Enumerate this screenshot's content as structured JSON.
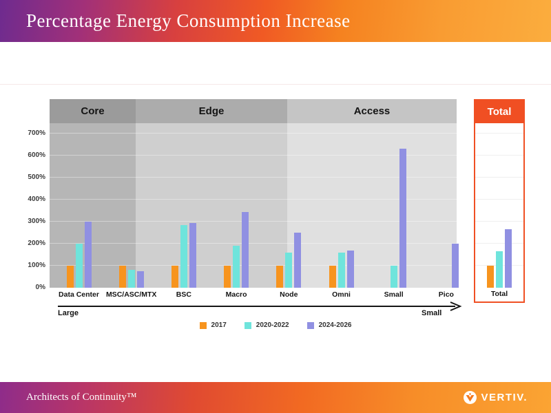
{
  "title": "Percentage Energy Consumption Increase",
  "footer": {
    "tagline": "Architects of Continuity™",
    "brand": "VERTIV."
  },
  "colors": {
    "series": [
      "#F7941E",
      "#6FE4DC",
      "#9090E2"
    ],
    "total_accent": "#F04F23",
    "core_header": "#9B9B9B",
    "edge_header": "#ACACAC",
    "access_header": "#C5C5C5",
    "core_bg": "#B6B6B6",
    "edge_bg": "#CFCFCF",
    "access_bg": "#E0E0E0"
  },
  "chart_data": {
    "type": "bar",
    "title": "Percentage Energy Consumption Increase",
    "sections": [
      {
        "label": "Core",
        "categories": [
          "Data Center",
          "MSC/ASC/MTX"
        ]
      },
      {
        "label": "Edge",
        "categories": [
          "BSC",
          "Macro",
          "Node"
        ]
      },
      {
        "label": "Access",
        "categories": [
          "Omni",
          "Small",
          "Pico"
        ]
      },
      {
        "label": "Total",
        "categories": [
          "Total"
        ]
      }
    ],
    "categories": [
      "Data Center",
      "MSC/ASC/MTX",
      "BSC",
      "Macro",
      "Node",
      "Omni",
      "Small",
      "Pico",
      "Total"
    ],
    "series": [
      {
        "name": "2017",
        "values": [
          100,
          100,
          100,
          100,
          100,
          100,
          null,
          null,
          100
        ]
      },
      {
        "name": "2020-2022",
        "values": [
          200,
          80,
          285,
          190,
          160,
          160,
          100,
          null,
          165
        ]
      },
      {
        "name": "2024-2026",
        "values": [
          300,
          75,
          295,
          345,
          250,
          170,
          630,
          200,
          265
        ]
      }
    ],
    "yticks": [
      "0%",
      "100%",
      "200%",
      "300%",
      "400%",
      "500%",
      "600%",
      "700%"
    ],
    "ylim": [
      0,
      745
    ],
    "grid": true,
    "legend_position": "bottom",
    "x_axis_annotation": {
      "left": "Large",
      "right": "Small"
    }
  }
}
